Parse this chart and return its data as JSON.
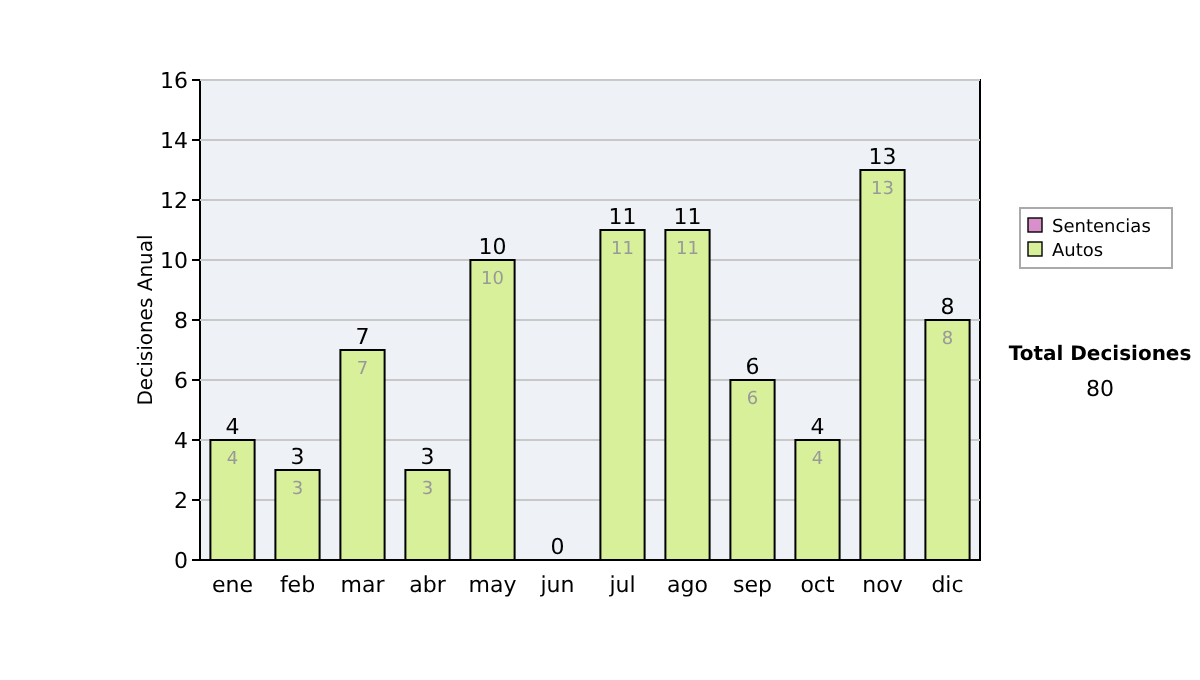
{
  "chart_data": {
    "type": "bar",
    "ylabel": "Decisiones Anual",
    "categories": [
      "ene",
      "feb",
      "mar",
      "abr",
      "may",
      "jun",
      "jul",
      "ago",
      "sep",
      "oct",
      "nov",
      "dic"
    ],
    "series": [
      {
        "name": "Sentencias",
        "color": "#d98fc9",
        "values": [
          0,
          0,
          0,
          0,
          0,
          0,
          0,
          0,
          0,
          0,
          0,
          0
        ]
      },
      {
        "name": "Autos",
        "color": "#d8f09a",
        "values": [
          4,
          3,
          7,
          3,
          10,
          0,
          11,
          11,
          6,
          4,
          13,
          8
        ],
        "value_labels": [
          "4",
          "3",
          "7",
          "3",
          "10",
          null,
          "11",
          "11",
          "6",
          "4",
          "13",
          "8"
        ]
      }
    ],
    "stacked": true,
    "totals": [
      "4",
      "3",
      "7",
      "3",
      "10",
      "0",
      "11",
      "11",
      "6",
      "4",
      "13",
      "8"
    ],
    "ylim": [
      0,
      16
    ],
    "yticks": [
      0,
      2,
      4,
      6,
      8,
      10,
      12,
      14,
      16
    ],
    "grid": "y",
    "legend": "right",
    "annotations": [
      "Total Decisiones",
      "80"
    ]
  }
}
